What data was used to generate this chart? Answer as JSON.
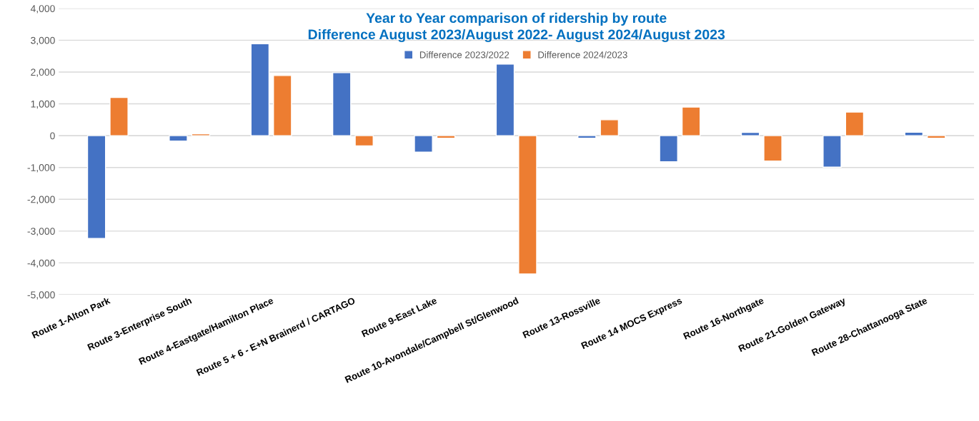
{
  "chart_data": {
    "type": "bar",
    "title": "Year to Year comparison of ridership by route\nDifference August 2023/August 2022- August 2024/August 2023",
    "categories": [
      "Route 1-Alton Park",
      "Route 3-Enterprise South",
      "Route 4-Eastgate/Hamilton Place",
      "Route 5 + 6 - E+N Brainerd / CARTAGO",
      "Route 9-East Lake",
      "Route 10-Avondale/Campbell St/Glenwood",
      "Route 13-Rossville",
      "Route 14 MOCS Express",
      "Route 16-Northgate",
      "Route 21-Golden Gateway",
      "Route 28-Chattanooga State"
    ],
    "series": [
      {
        "name": "Difference 2023/2022",
        "color": "#4472c4",
        "values": [
          -3230,
          -170,
          2890,
          1980,
          -520,
          2250,
          -80,
          -820,
          100,
          -990,
          110
        ]
      },
      {
        "name": "Difference 2024/2023",
        "color": "#ed7d31",
        "values": [
          1200,
          60,
          1890,
          -320,
          -80,
          -4350,
          500,
          900,
          -800,
          740,
          -80
        ]
      }
    ],
    "ylim": [
      -5000,
      4000
    ],
    "yticks": [
      {
        "value": -5000,
        "label": "-5,000"
      },
      {
        "value": -4000,
        "label": "-4,000"
      },
      {
        "value": -3000,
        "label": "-3,000"
      },
      {
        "value": -2000,
        "label": "-2,000"
      },
      {
        "value": -1000,
        "label": "-1,000"
      },
      {
        "value": 0,
        "label": "0"
      },
      {
        "value": 1000,
        "label": "1,000"
      },
      {
        "value": 2000,
        "label": "2,000"
      },
      {
        "value": 3000,
        "label": "3,000"
      },
      {
        "value": 4000,
        "label": "4,000"
      }
    ],
    "grid": "y",
    "legend": "top"
  }
}
